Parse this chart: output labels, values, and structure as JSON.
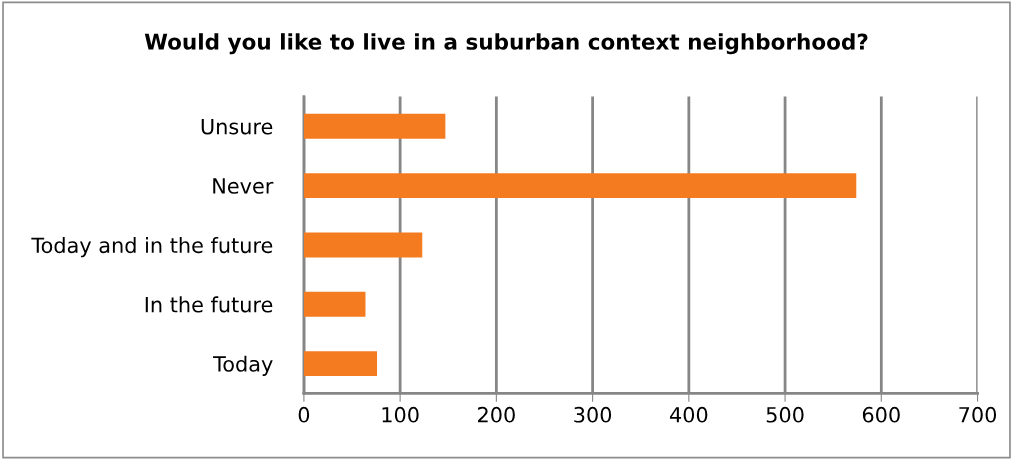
{
  "chart_data": {
    "type": "bar",
    "orientation": "horizontal",
    "title": "Would you like to live in a suburban context neighborhood?",
    "categories": [
      "Unsure",
      "Never",
      "Today and in the future",
      "In the future",
      "Today"
    ],
    "values": [
      147,
      574,
      123,
      64,
      76
    ],
    "color": "#f47b20",
    "xlim": [
      0,
      700
    ],
    "xticks": [
      0,
      100,
      200,
      300,
      400,
      500,
      600,
      700
    ],
    "grid": "x",
    "legend": false
  }
}
